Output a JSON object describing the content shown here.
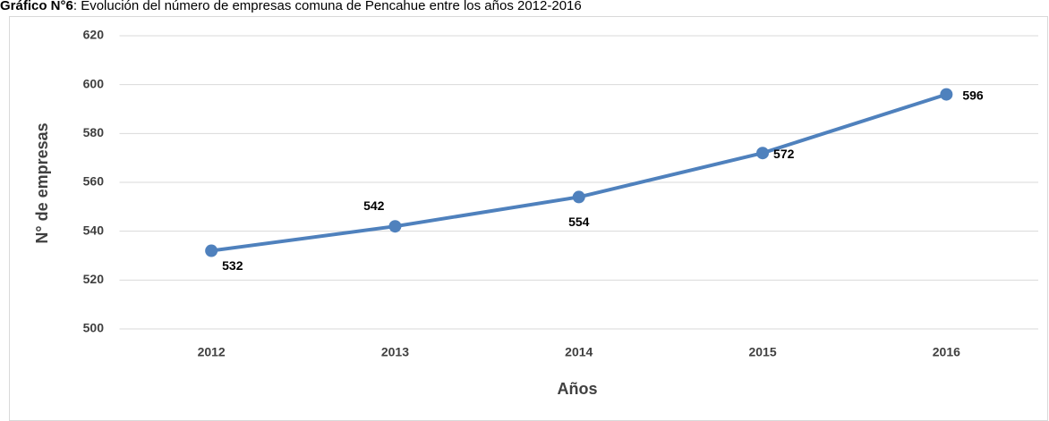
{
  "chart_data": {
    "type": "line",
    "title_label": "Gráfico N°6",
    "title": ": Evolución del número de empresas comuna de Pencahue entre los años 2012-2016",
    "xlabel": "Años",
    "ylabel": "N° de empresas",
    "categories": [
      "2012",
      "2013",
      "2014",
      "2015",
      "2016"
    ],
    "series": [
      {
        "name": "N° de empresas",
        "color": "#4f81bd",
        "values": [
          532,
          542,
          554,
          572,
          596
        ]
      }
    ],
    "ylim": [
      500,
      620
    ],
    "yticks": [
      500,
      520,
      540,
      560,
      580,
      600,
      620
    ],
    "grid": true
  }
}
